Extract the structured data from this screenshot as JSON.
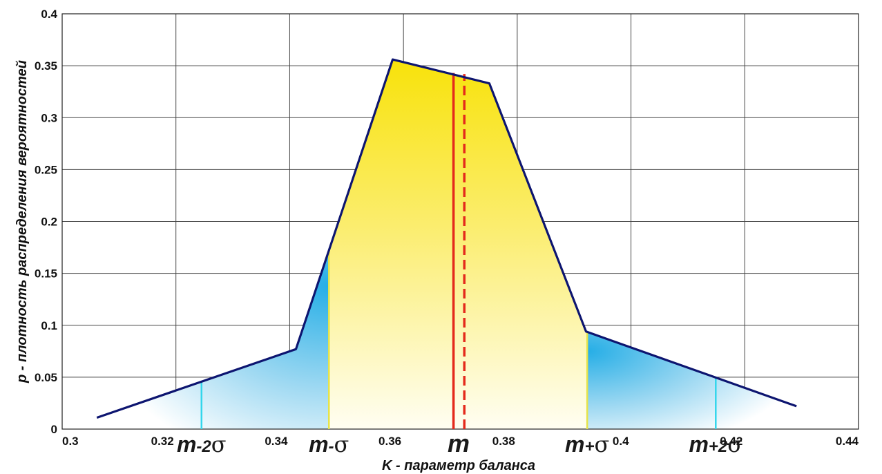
{
  "chart_data": {
    "type": "area",
    "xlabel": "K - параметр баланса",
    "ylabel": "p - плотность распределения вероятностей",
    "xlim": [
      0.3,
      0.44
    ],
    "ylim": [
      0,
      0.4
    ],
    "xticks": [
      "0.3",
      "0.32",
      "0.34",
      "0.36",
      "0.38",
      "0.4",
      "0.42",
      "0.44"
    ],
    "yticks": [
      "0",
      "0.05",
      "0.1",
      "0.15",
      "0.2",
      "0.25",
      "0.3",
      "0.35",
      "0.4"
    ],
    "grid": true,
    "series": [
      {
        "x": [
          0.3061,
          0.3411,
          0.3581,
          0.3751,
          0.3921,
          0.4291
        ],
        "y": [
          0.011,
          0.077,
          0.356,
          0.333,
          0.094,
          0.022
        ]
      }
    ],
    "markers": {
      "m_minus_2sigma": 0.3245,
      "m_minus_sigma": 0.3469,
      "m_solid": 0.3688,
      "m_dashed": 0.3707,
      "m_plus_sigma": 0.3923,
      "m_plus_2sigma": 0.4149
    },
    "annotations": [
      {
        "text": "m-2σ",
        "x": 0.3245
      },
      {
        "text": "m-σ",
        "x": 0.3469
      },
      {
        "text": "m",
        "x": 0.3697
      },
      {
        "text": "m+σ",
        "x": 0.3923
      },
      {
        "text": "m+2σ",
        "x": 0.4149
      }
    ]
  }
}
